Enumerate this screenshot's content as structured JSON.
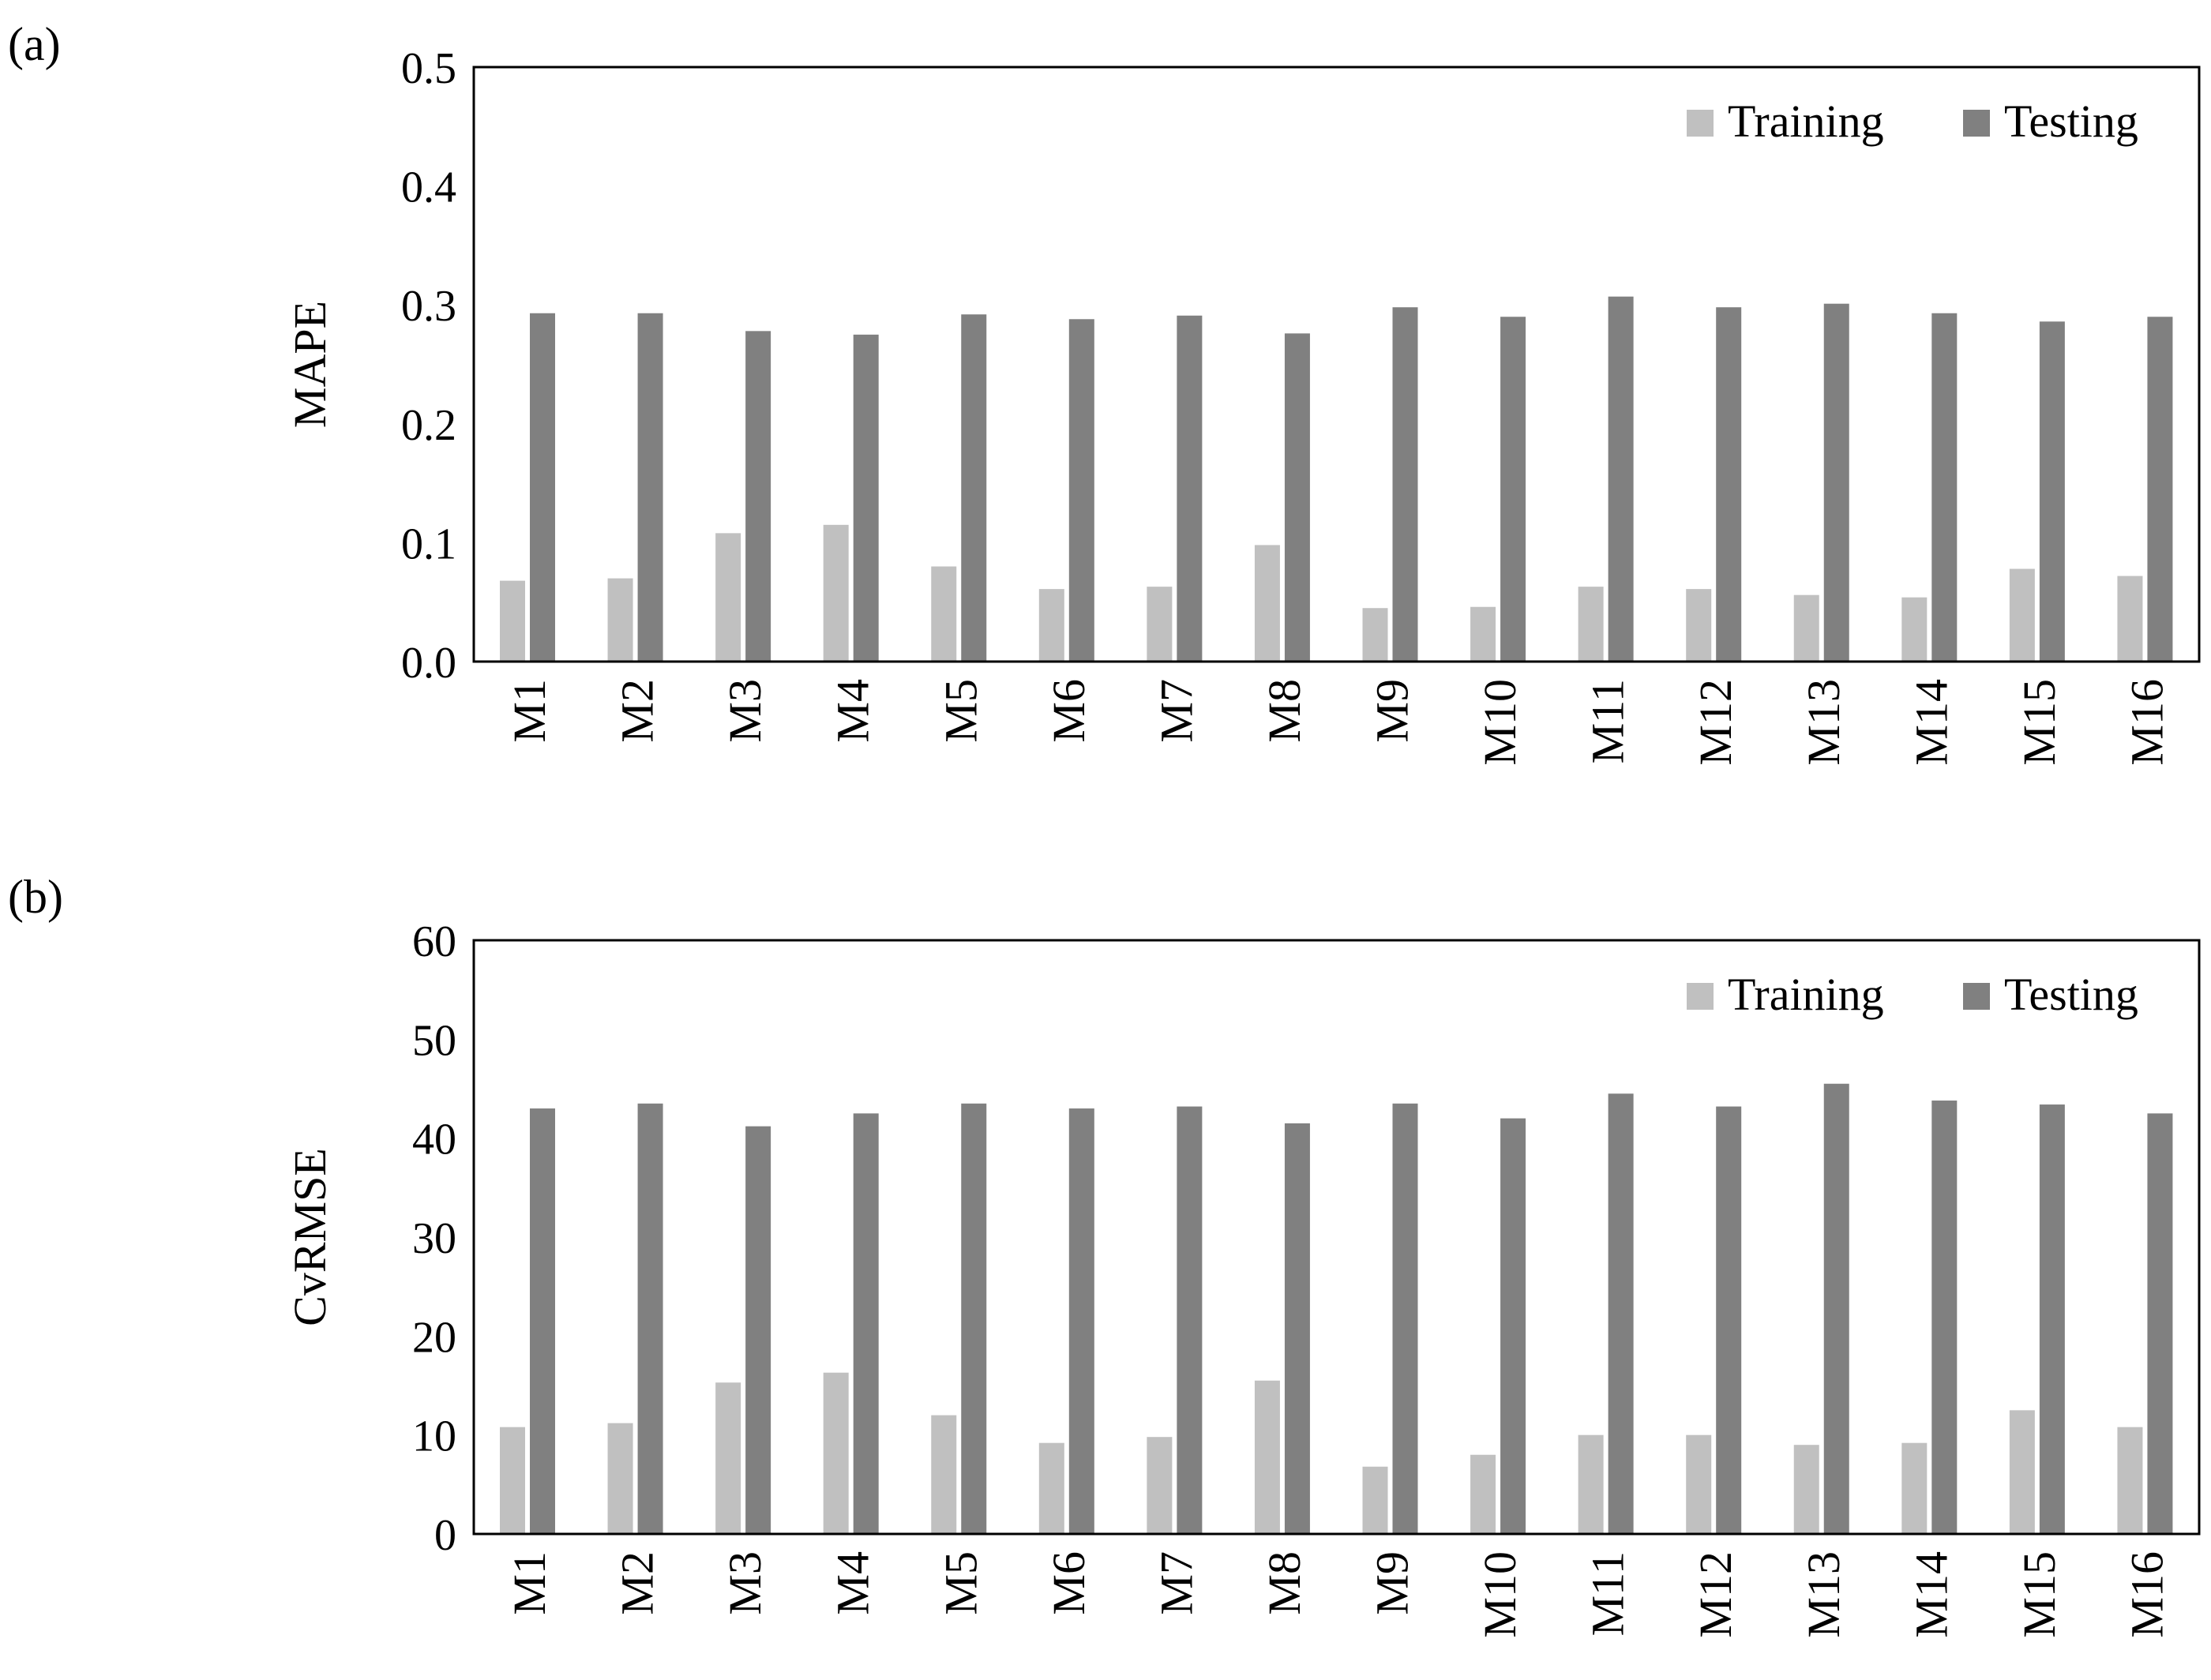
{
  "panels": [
    {
      "label": "(a)",
      "chart_data": {
        "type": "bar",
        "ylabel": "MAPE",
        "ylim": [
          0,
          0.5
        ],
        "yticks": [
          "0.0",
          "0.1",
          "0.2",
          "0.3",
          "0.4",
          "0.5"
        ],
        "categories": [
          "M1",
          "M2",
          "M3",
          "M4",
          "M5",
          "M6",
          "M7",
          "M8",
          "M9",
          "M10",
          "M11",
          "M12",
          "M13",
          "M14",
          "M15",
          "M16"
        ],
        "legend_position": "top-right",
        "grid": false,
        "series": [
          {
            "name": "Training",
            "color": "#c0c0c0",
            "values": [
              0.068,
              0.07,
              0.108,
              0.115,
              0.08,
              0.061,
              0.063,
              0.098,
              0.045,
              0.046,
              0.063,
              0.061,
              0.056,
              0.054,
              0.078,
              0.072
            ]
          },
          {
            "name": "Testing",
            "color": "#808080",
            "values": [
              0.293,
              0.293,
              0.278,
              0.275,
              0.292,
              0.288,
              0.291,
              0.276,
              0.298,
              0.29,
              0.307,
              0.298,
              0.301,
              0.293,
              0.286,
              0.29
            ]
          }
        ]
      }
    },
    {
      "label": "(b)",
      "chart_data": {
        "type": "bar",
        "ylabel": "CvRMSE",
        "ylim": [
          0,
          60
        ],
        "yticks": [
          "0",
          "10",
          "20",
          "30",
          "40",
          "50",
          "60"
        ],
        "categories": [
          "M1",
          "M2",
          "M3",
          "M4",
          "M5",
          "M6",
          "M7",
          "M8",
          "M9",
          "M10",
          "M11",
          "M12",
          "M13",
          "M14",
          "M15",
          "M16"
        ],
        "legend_position": "top-right",
        "grid": false,
        "series": [
          {
            "name": "Training",
            "color": "#c0c0c0",
            "values": [
              10.8,
              11.2,
              15.3,
              16.3,
              12.0,
              9.2,
              9.8,
              15.5,
              6.8,
              8.0,
              10.0,
              10.0,
              9.0,
              9.2,
              12.5,
              10.8
            ]
          },
          {
            "name": "Testing",
            "color": "#808080",
            "values": [
              43.0,
              43.5,
              41.2,
              42.5,
              43.5,
              43.0,
              43.2,
              41.5,
              43.5,
              42.0,
              44.5,
              43.2,
              45.5,
              43.8,
              43.4,
              42.5
            ]
          }
        ]
      }
    }
  ]
}
